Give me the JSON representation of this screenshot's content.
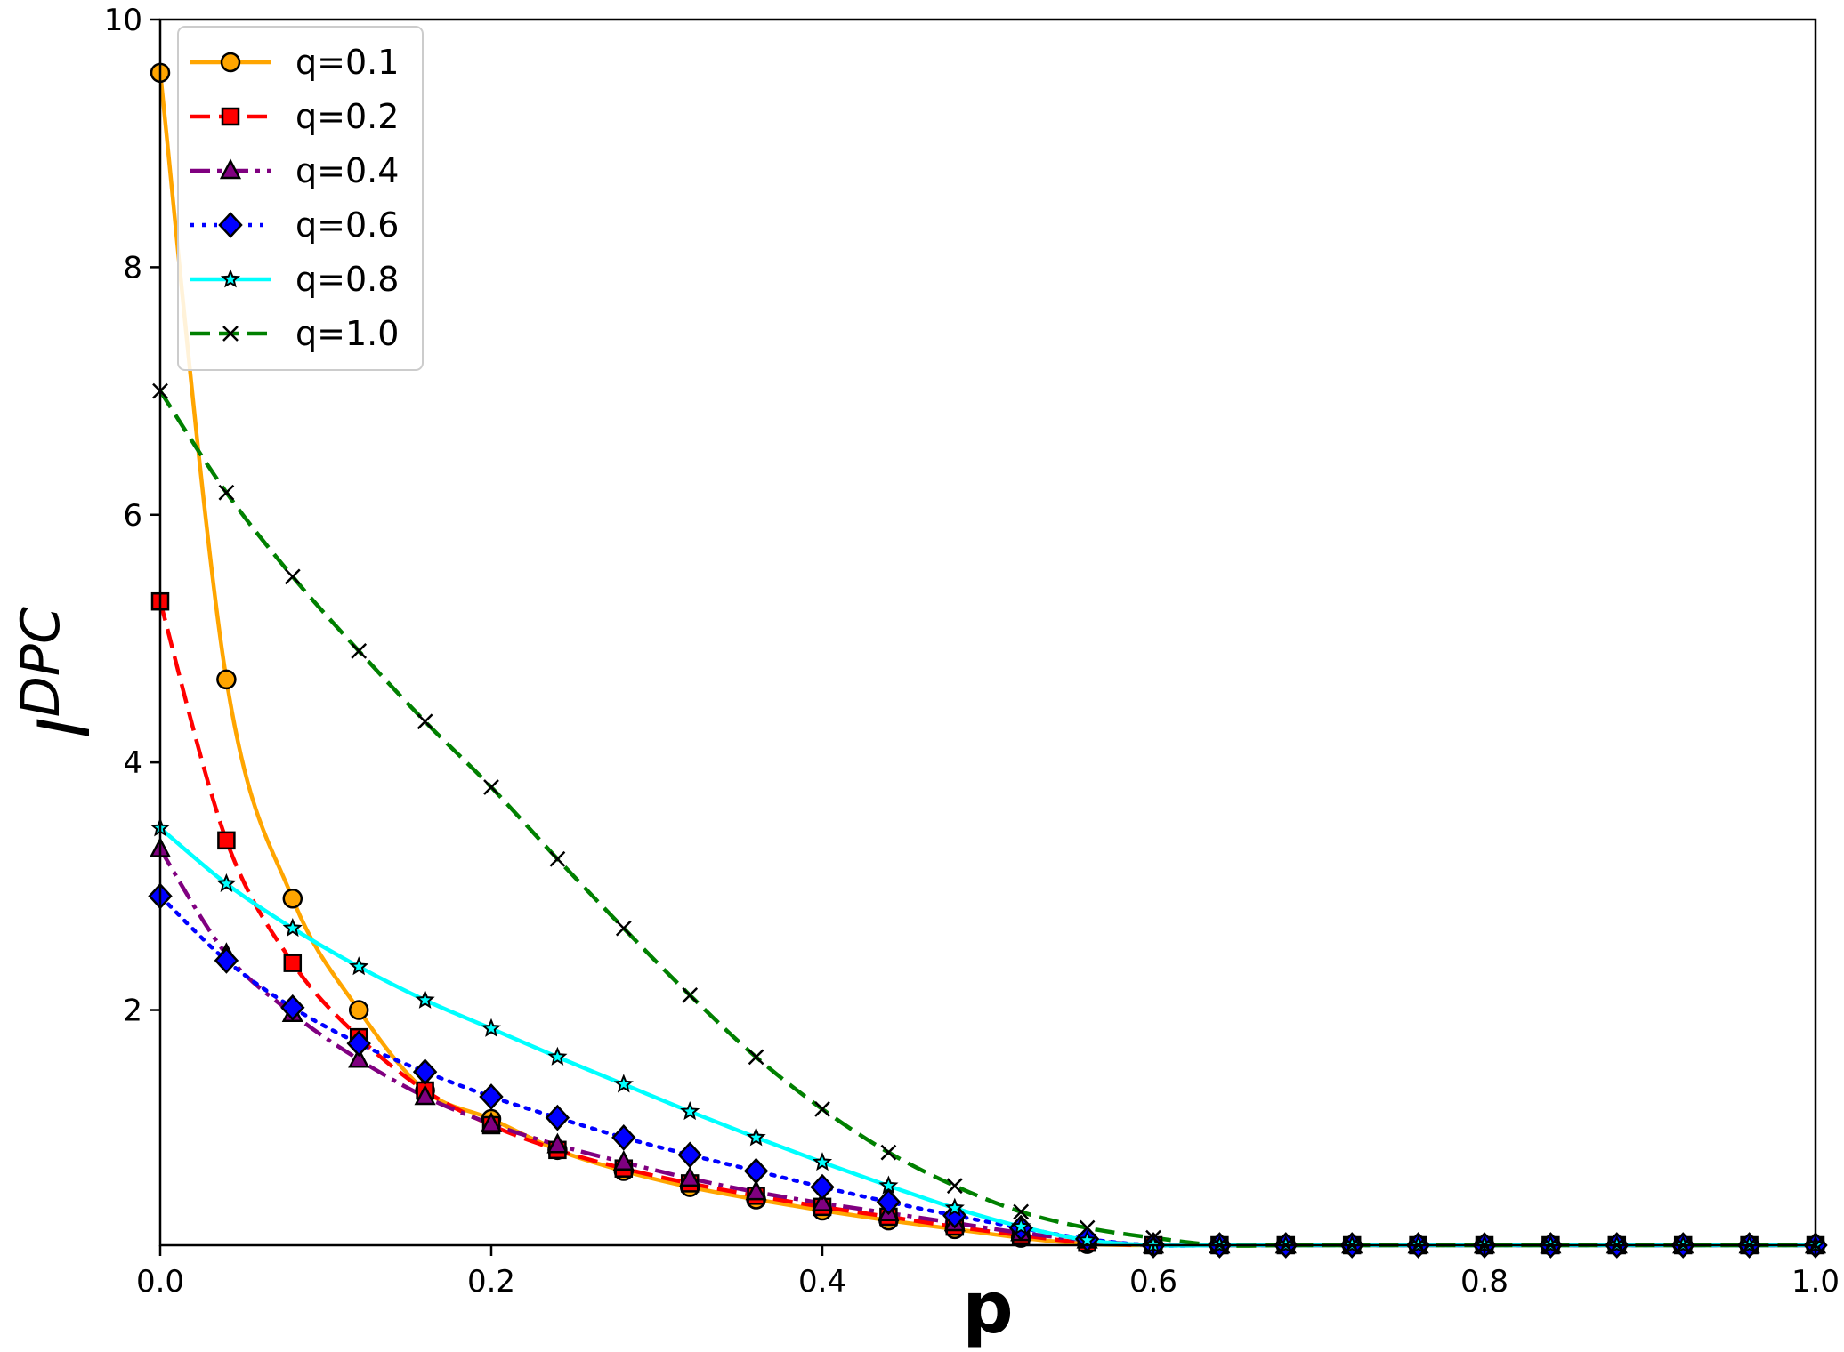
{
  "chart_data": {
    "type": "line",
    "xlabel": "p",
    "ylabel": "I",
    "ylabel_superscript": "DPC",
    "xlim": [
      0.0,
      1.0
    ],
    "ylim": [
      0.1,
      10.0
    ],
    "xticks": [
      0.0,
      0.2,
      0.4,
      0.6,
      0.8,
      1.0
    ],
    "xtick_labels": [
      "0.0",
      "0.2",
      "0.4",
      "0.6",
      "0.8",
      "1.0"
    ],
    "yticks": [
      2,
      4,
      6,
      8,
      10
    ],
    "ytick_labels": [
      "2",
      "4",
      "6",
      "8",
      "10"
    ],
    "grid": false,
    "legend_position": "top-left",
    "x": [
      0.0,
      0.04,
      0.08,
      0.12,
      0.16,
      0.2,
      0.24,
      0.28,
      0.32,
      0.36,
      0.4,
      0.44,
      0.48,
      0.52,
      0.56,
      0.6,
      0.64,
      0.68,
      0.72,
      0.76,
      0.8,
      0.84,
      0.88,
      0.92,
      0.96,
      1.0
    ],
    "series": [
      {
        "name": "q=0.1",
        "color": "#FFA500",
        "dash": "solid",
        "marker": "circle",
        "values": [
          9.57,
          4.67,
          2.9,
          2.0,
          1.35,
          1.12,
          0.87,
          0.7,
          0.57,
          0.47,
          0.38,
          0.3,
          0.23,
          0.16,
          0.11,
          0.1,
          0.1,
          0.1,
          0.1,
          0.1,
          0.1,
          0.1,
          0.1,
          0.1,
          0.1,
          0.1
        ]
      },
      {
        "name": "q=0.2",
        "color": "#FF0000",
        "dash": "dashed",
        "marker": "square",
        "values": [
          5.3,
          3.37,
          2.38,
          1.78,
          1.35,
          1.07,
          0.87,
          0.72,
          0.6,
          0.5,
          0.41,
          0.33,
          0.25,
          0.18,
          0.12,
          0.1,
          0.1,
          0.1,
          0.1,
          0.1,
          0.1,
          0.1,
          0.1,
          0.1,
          0.1,
          0.1
        ]
      },
      {
        "name": "q=0.4",
        "color": "#800080",
        "dash": "dashdot",
        "marker": "triangle",
        "values": [
          3.3,
          2.45,
          1.97,
          1.6,
          1.3,
          1.08,
          0.91,
          0.77,
          0.64,
          0.53,
          0.44,
          0.36,
          0.28,
          0.2,
          0.14,
          0.1,
          0.1,
          0.1,
          0.1,
          0.1,
          0.1,
          0.1,
          0.1,
          0.1,
          0.1,
          0.1
        ]
      },
      {
        "name": "q=0.6",
        "color": "#0000FF",
        "dash": "dotted",
        "marker": "diamond",
        "values": [
          2.92,
          2.4,
          2.02,
          1.73,
          1.5,
          1.3,
          1.13,
          0.97,
          0.83,
          0.7,
          0.57,
          0.45,
          0.34,
          0.24,
          0.15,
          0.1,
          0.1,
          0.1,
          0.1,
          0.1,
          0.1,
          0.1,
          0.1,
          0.1,
          0.1,
          0.1
        ]
      },
      {
        "name": "q=0.8",
        "color": "#00FFFF",
        "dash": "solid",
        "marker": "star",
        "values": [
          3.47,
          3.02,
          2.66,
          2.35,
          2.08,
          1.85,
          1.62,
          1.4,
          1.18,
          0.97,
          0.77,
          0.58,
          0.4,
          0.25,
          0.14,
          0.1,
          0.1,
          0.1,
          0.1,
          0.1,
          0.1,
          0.1,
          0.1,
          0.1,
          0.1,
          0.1
        ]
      },
      {
        "name": "q=1.0",
        "color": "#008000",
        "dash": "dashed",
        "marker": "x",
        "values": [
          7.0,
          6.18,
          5.5,
          4.9,
          4.33,
          3.8,
          3.22,
          2.66,
          2.12,
          1.62,
          1.2,
          0.85,
          0.58,
          0.37,
          0.24,
          0.16,
          0.1,
          0.1,
          0.1,
          0.1,
          0.1,
          0.1,
          0.1,
          0.1,
          0.1,
          0.1
        ]
      }
    ]
  }
}
